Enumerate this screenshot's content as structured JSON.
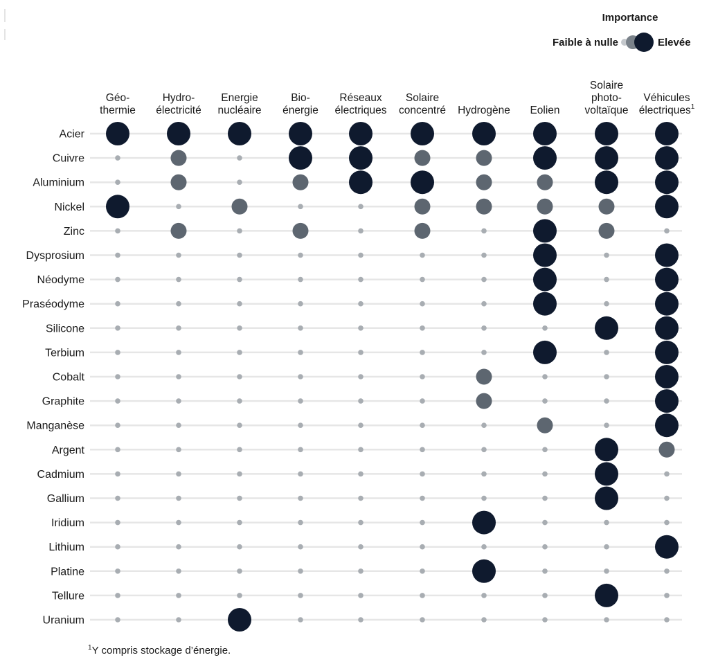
{
  "chart_data": {
    "type": "dot-matrix",
    "legend": {
      "title": "Importance",
      "low_label": "Faible à nulle",
      "high_label": "Elevée",
      "placement": "top-right"
    },
    "columns": [
      {
        "lines": [
          "Géo-",
          "thermie"
        ]
      },
      {
        "lines": [
          "Hydro-",
          "électricité"
        ]
      },
      {
        "lines": [
          "Energie",
          "nucléaire"
        ]
      },
      {
        "lines": [
          "Bio-",
          "énergie"
        ]
      },
      {
        "lines": [
          "Réseaux",
          "électriques"
        ]
      },
      {
        "lines": [
          "Solaire",
          "concentré"
        ]
      },
      {
        "lines": [
          "Hydrogène"
        ]
      },
      {
        "lines": [
          "Eolien"
        ]
      },
      {
        "lines": [
          "Solaire",
          "photo-",
          "voltaïque"
        ]
      },
      {
        "lines": [
          "Véhicules",
          "électriques"
        ],
        "sup": "1"
      }
    ],
    "rows": [
      "Acier",
      "Cuivre",
      "Aluminium",
      "Nickel",
      "Zinc",
      "Dysprosium",
      "Néodyme",
      "Praséodyme",
      "Silicone",
      "Terbium",
      "Cobalt",
      "Graphite",
      "Manganèse",
      "Argent",
      "Cadmium",
      "Gallium",
      "Iridium",
      "Lithium",
      "Platine",
      "Tellure",
      "Uranium"
    ],
    "levels": [
      "low",
      "medium",
      "high"
    ],
    "values": [
      [
        2,
        2,
        2,
        2,
        2,
        2,
        2,
        2,
        2,
        2
      ],
      [
        0,
        1,
        0,
        2,
        2,
        1,
        1,
        2,
        2,
        2
      ],
      [
        0,
        1,
        0,
        1,
        2,
        2,
        1,
        1,
        2,
        2
      ],
      [
        2,
        0,
        1,
        0,
        0,
        1,
        1,
        1,
        1,
        2
      ],
      [
        0,
        1,
        0,
        1,
        0,
        1,
        0,
        2,
        1,
        0
      ],
      [
        0,
        0,
        0,
        0,
        0,
        0,
        0,
        2,
        0,
        2
      ],
      [
        0,
        0,
        0,
        0,
        0,
        0,
        0,
        2,
        0,
        2
      ],
      [
        0,
        0,
        0,
        0,
        0,
        0,
        0,
        2,
        0,
        2
      ],
      [
        0,
        0,
        0,
        0,
        0,
        0,
        0,
        0,
        2,
        2
      ],
      [
        0,
        0,
        0,
        0,
        0,
        0,
        0,
        2,
        0,
        2
      ],
      [
        0,
        0,
        0,
        0,
        0,
        0,
        1,
        0,
        0,
        2
      ],
      [
        0,
        0,
        0,
        0,
        0,
        0,
        1,
        0,
        0,
        2
      ],
      [
        0,
        0,
        0,
        0,
        0,
        0,
        0,
        1,
        0,
        2
      ],
      [
        0,
        0,
        0,
        0,
        0,
        0,
        0,
        0,
        2,
        1
      ],
      [
        0,
        0,
        0,
        0,
        0,
        0,
        0,
        0,
        2,
        0
      ],
      [
        0,
        0,
        0,
        0,
        0,
        0,
        0,
        0,
        2,
        0
      ],
      [
        0,
        0,
        0,
        0,
        0,
        0,
        2,
        0,
        0,
        0
      ],
      [
        0,
        0,
        0,
        0,
        0,
        0,
        0,
        0,
        0,
        2
      ],
      [
        0,
        0,
        0,
        0,
        0,
        0,
        2,
        0,
        0,
        0
      ],
      [
        0,
        0,
        0,
        0,
        0,
        0,
        0,
        0,
        2,
        0
      ],
      [
        0,
        0,
        2,
        0,
        0,
        0,
        0,
        0,
        0,
        0
      ]
    ],
    "colors": {
      "high": "#0f1a2e",
      "medium": "#5d6670",
      "low": "#a8adb2",
      "grid": "#e6e6e6"
    },
    "grid": true
  },
  "footnote": {
    "sup": "1",
    "text": "Y compris stockage d’énergie."
  }
}
